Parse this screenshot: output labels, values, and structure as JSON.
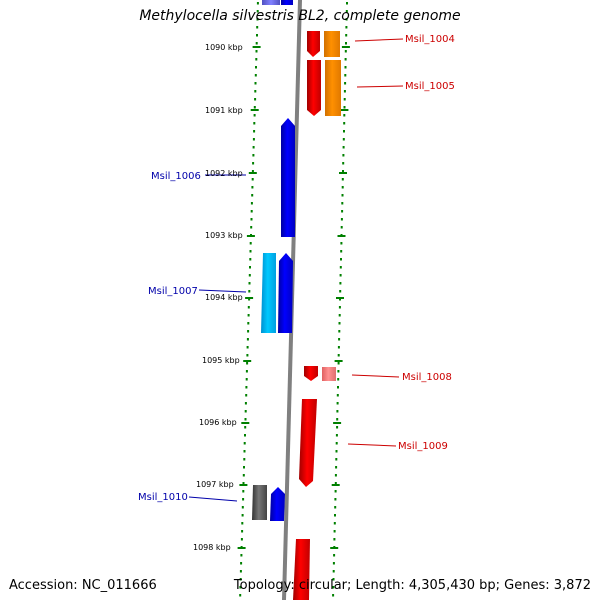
{
  "title": "Methylocella silvestris BL2, complete genome",
  "accession": "Accession: NC_011666",
  "topology": "Topology: circular; Length: 4,305,430 bp; Genes: 3,872",
  "ticks": [
    "1090 kbp",
    "1091 kbp",
    "1092 kbp",
    "1093 kbp",
    "1094 kbp",
    "1095 kbp",
    "1096 kbp",
    "1097 kbp",
    "1098 kbp"
  ],
  "gene_labels": {
    "msil_1004": "Msil_1004",
    "msil_1005": "Msil_1005",
    "msil_1006": "Msil_1006",
    "msil_1007": "Msil_1007",
    "msil_1008": "Msil_1008",
    "msil_1009": "Msil_1009",
    "msil_1010": "Msil_1010"
  },
  "colors": {
    "forward": "#ff0000",
    "forward_light": "#f08080",
    "reverse": "#0000ff",
    "reverse_light": "#00bfff",
    "orange": "#ff8c00",
    "gray": "#555555",
    "backbone": "#808080",
    "dots": "#008000",
    "forward_label": "#cc0000",
    "reverse_label": "#0000aa"
  }
}
